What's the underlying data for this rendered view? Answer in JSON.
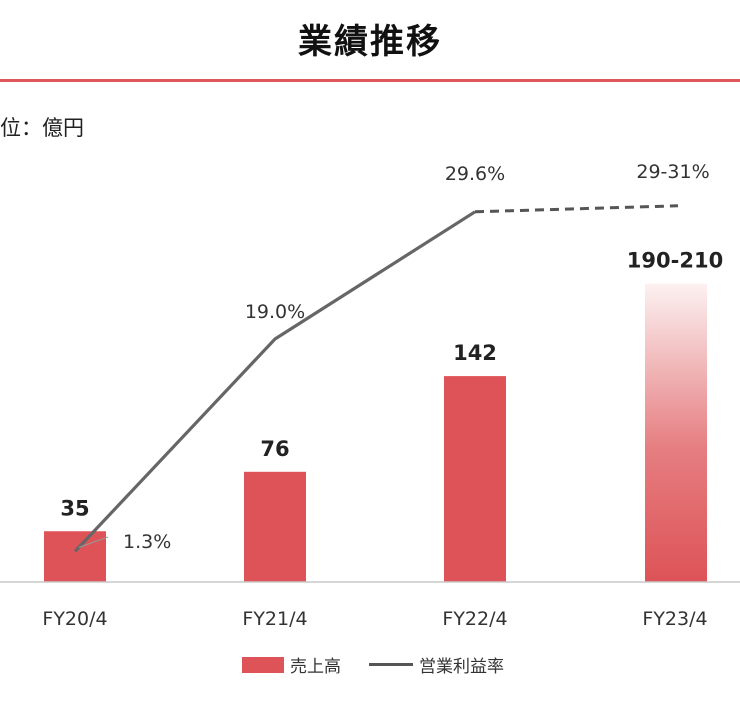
{
  "page": {
    "title": "業績推移",
    "unit": "位：億円"
  },
  "legend": {
    "sales": "売上高",
    "margin": "営業利益率"
  },
  "colors": {
    "bar": "#dd5357",
    "line": "#555555",
    "rule": "#e0585c"
  },
  "chart_data": {
    "type": "bar",
    "categories": [
      "FY20/4",
      "FY21/4",
      "FY22/4",
      "FY23/4"
    ],
    "series": [
      {
        "name": "売上高",
        "type": "bar",
        "values": [
          35,
          76,
          142,
          200
        ],
        "labels": [
          "35",
          "76",
          "142",
          "190-210"
        ],
        "forecast_range": [
          190,
          210
        ],
        "forecast_index": 3
      },
      {
        "name": "営業利益率",
        "type": "line",
        "values": [
          1.3,
          19.0,
          29.6,
          30.0
        ],
        "labels": [
          "1.3%",
          "19.0%",
          "29.6%",
          "29-31%"
        ],
        "forecast_range": [
          29,
          31
        ],
        "forecast_index": 3
      }
    ],
    "ylim": [
      0,
      210
    ],
    "y2lim": [
      0,
      31
    ],
    "legend_position": "bottom",
    "grid": false
  }
}
